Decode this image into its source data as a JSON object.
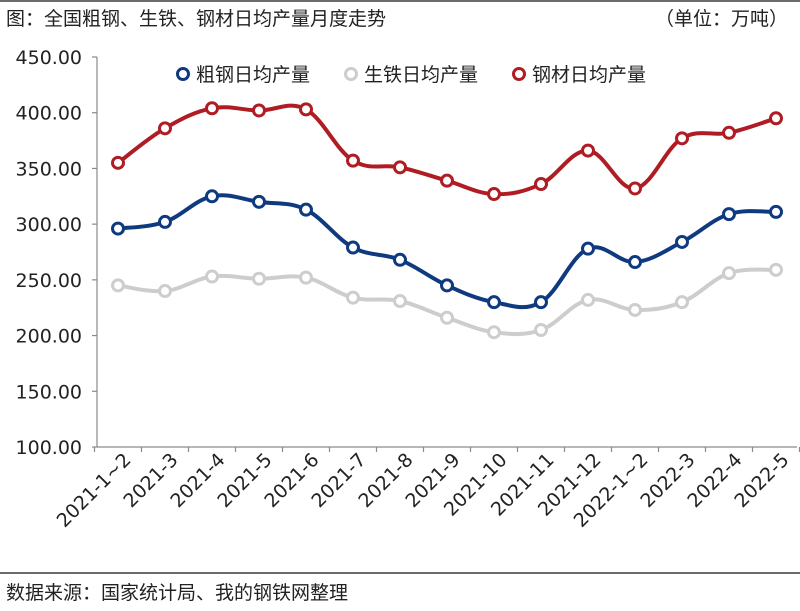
{
  "header": {
    "title": "图：全国粗钢、生铁、钢材日均产量月度走势",
    "unit": "（单位：万吨）"
  },
  "footer": {
    "source": "数据来源：国家统计局、我的钢铁网整理"
  },
  "chart_data": {
    "type": "line",
    "title": "图：全国粗钢、生铁、钢材日均产量月度走势",
    "xlabel": "",
    "ylabel": "（单位：万吨）",
    "ylim": [
      100,
      450
    ],
    "yticks": [
      "100.00",
      "150.00",
      "200.00",
      "250.00",
      "300.00",
      "350.00",
      "400.00",
      "450.00"
    ],
    "grid": false,
    "legend_position": "top",
    "categories": [
      "2021-1~2",
      "2021-3",
      "2021-4",
      "2021-5",
      "2021-6",
      "2021-7",
      "2021-8",
      "2021-9",
      "2021-10",
      "2021-11",
      "2021-12",
      "2022-1~2",
      "2022-3",
      "2022-4",
      "2022-5"
    ],
    "series": [
      {
        "name": "粗钢日均产量",
        "color": "#0f3a80",
        "values": [
          296,
          302,
          325,
          320,
          313,
          279,
          268,
          245,
          230,
          230,
          278,
          266,
          284,
          309,
          311
        ]
      },
      {
        "name": "生铁日均产量",
        "color": "#cdcdcd",
        "values": [
          245,
          240,
          253,
          251,
          252,
          234,
          231,
          216,
          203,
          205,
          232,
          223,
          230,
          256,
          259
        ]
      },
      {
        "name": "钢材日均产量",
        "color": "#b01c23",
        "values": [
          355,
          386,
          404,
          402,
          403,
          357,
          351,
          339,
          327,
          336,
          366,
          332,
          377,
          382,
          395
        ]
      }
    ]
  }
}
